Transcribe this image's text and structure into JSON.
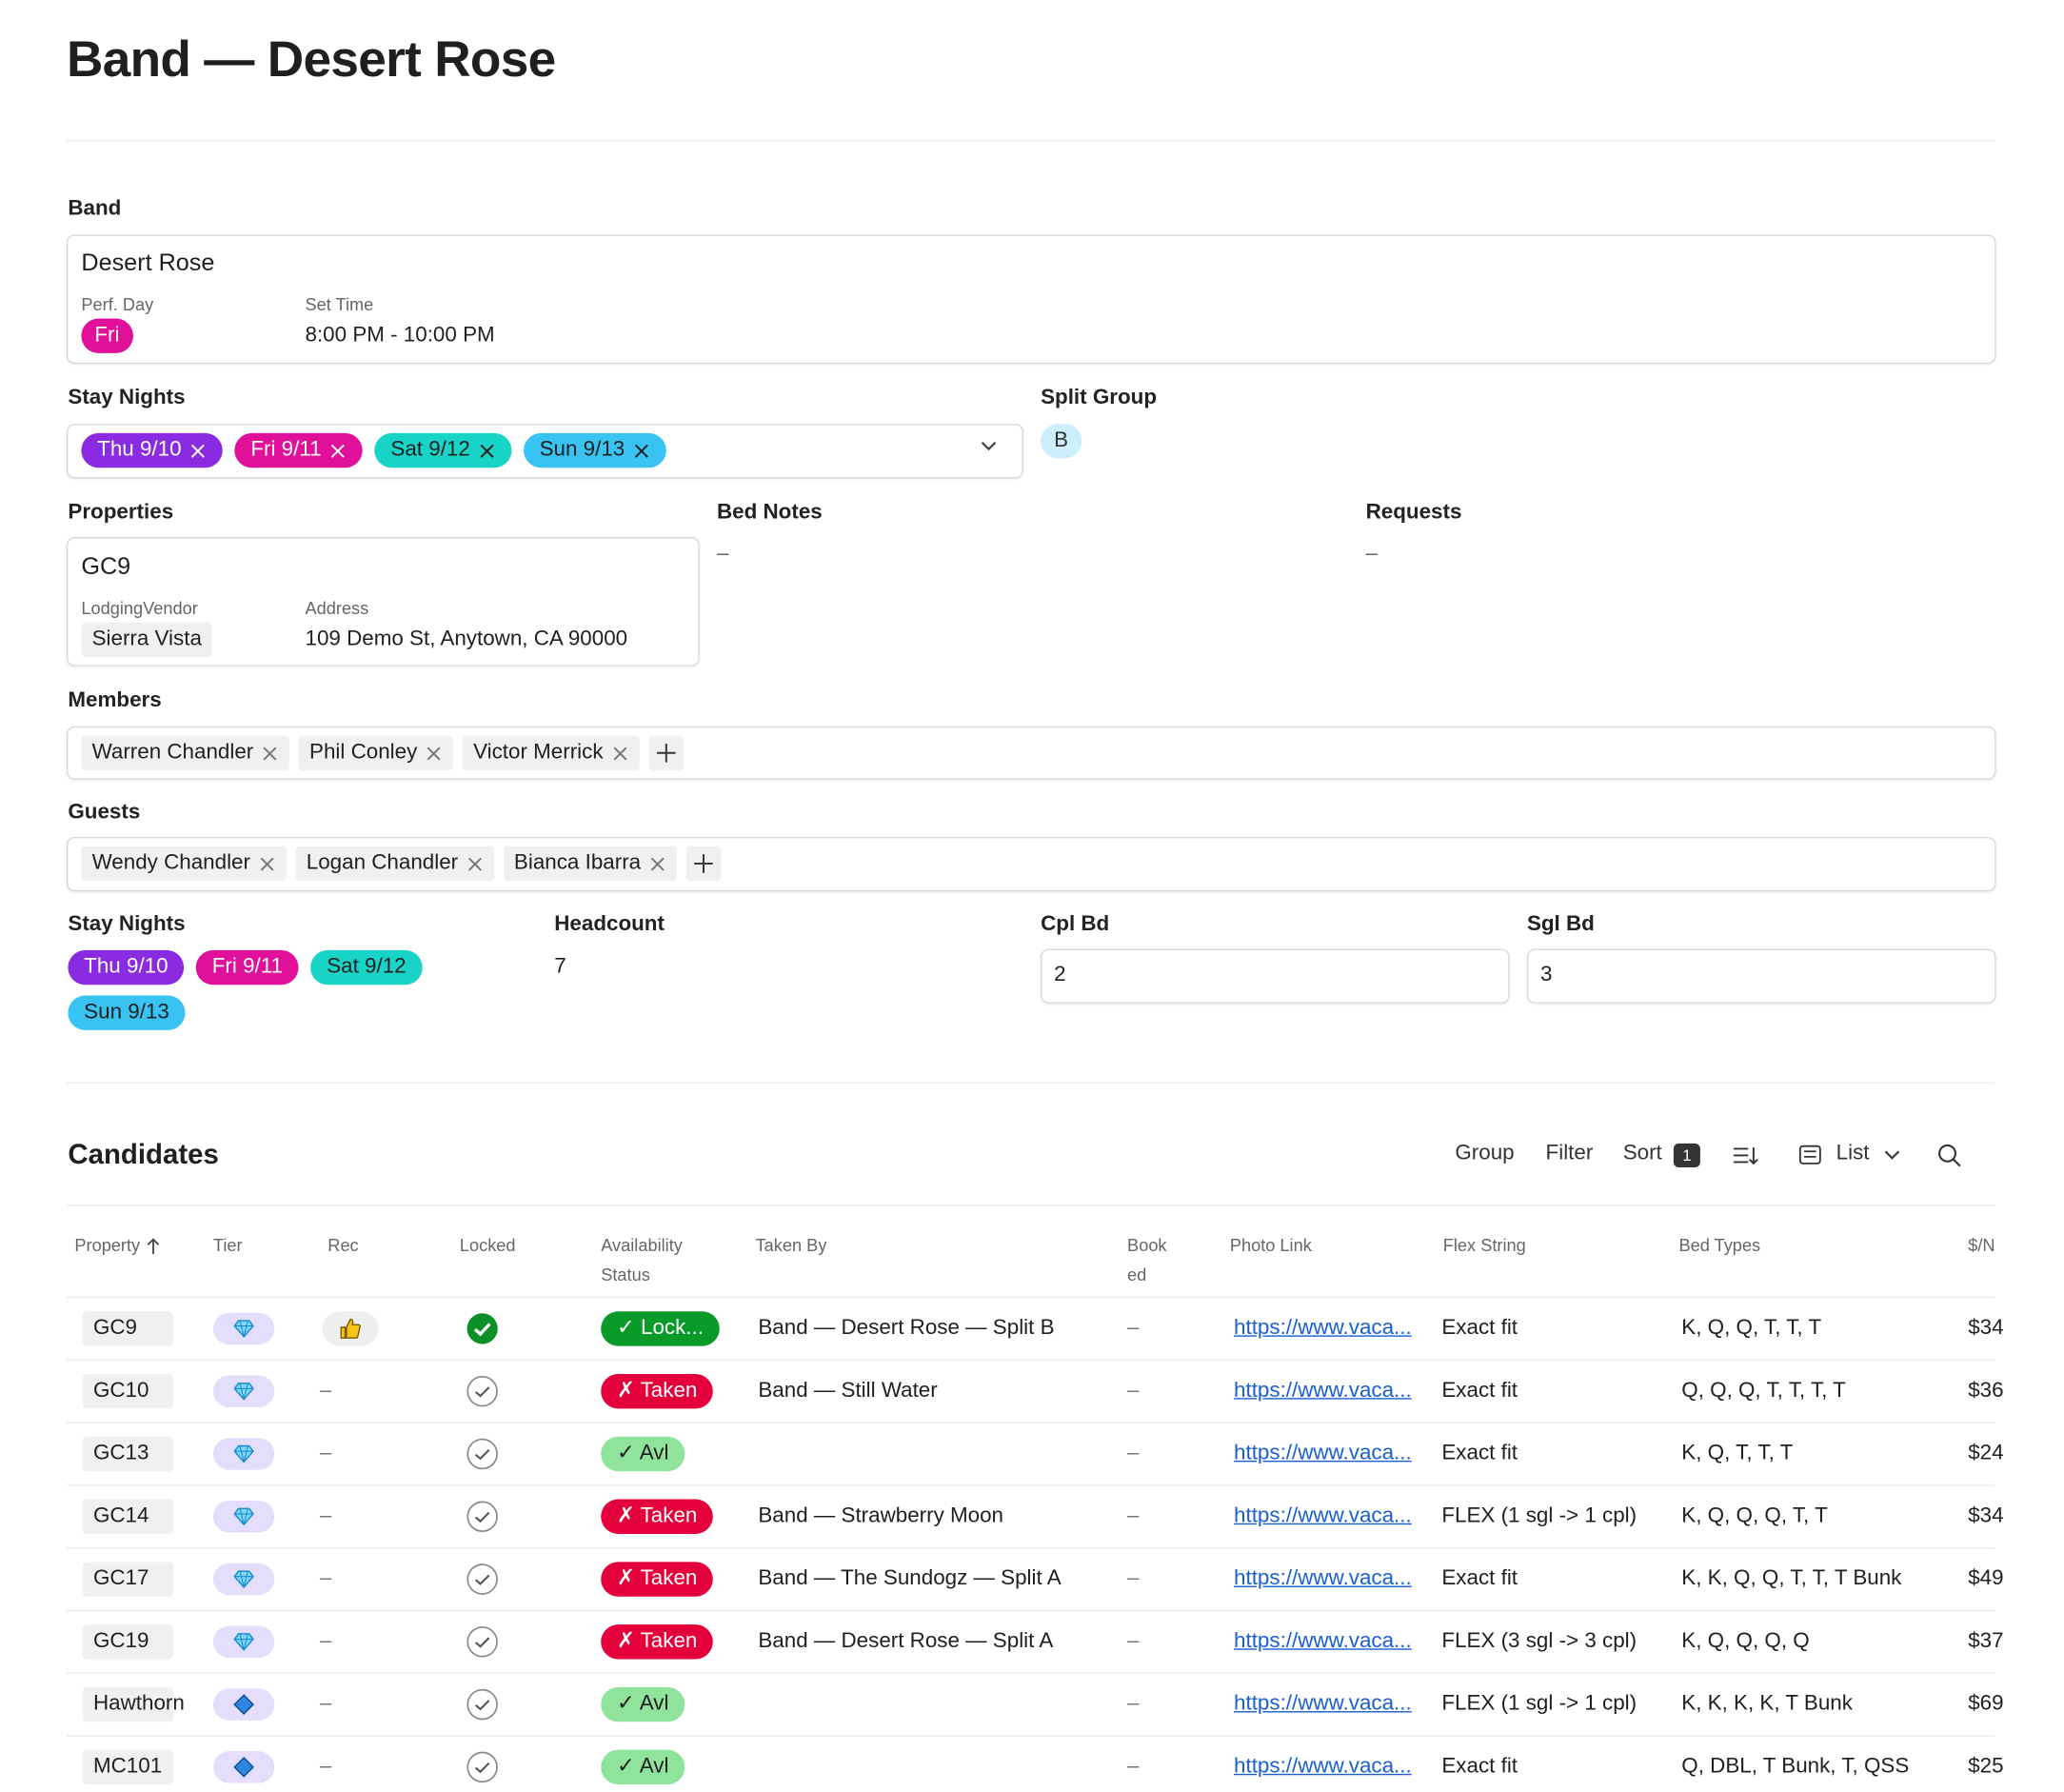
{
  "header": {
    "title": "Band — Desert Rose"
  },
  "band": {
    "label": "Band",
    "name": "Desert Rose",
    "perf_day_label": "Perf. Day",
    "perf_day": "Fri",
    "set_time_label": "Set Time",
    "set_time": "8:00 PM - 10:00 PM"
  },
  "stay_nights": {
    "label": "Stay Nights",
    "chips": [
      "Thu 9/10",
      "Fri 9/11",
      "Sat 9/12",
      "Sun 9/13"
    ]
  },
  "split_group": {
    "label": "Split Group",
    "value": "B"
  },
  "properties": {
    "label": "Properties",
    "name": "GC9",
    "vendor_label": "LodgingVendor",
    "vendor": "Sierra Vista",
    "address_label": "Address",
    "address": "109 Demo St, Anytown, CA 90000"
  },
  "bed_notes": {
    "label": "Bed Notes",
    "value": "–"
  },
  "requests": {
    "label": "Requests",
    "value": "–"
  },
  "members": {
    "label": "Members",
    "chips": [
      "Warren Chandler",
      "Phil Conley",
      "Victor Merrick"
    ]
  },
  "guests": {
    "label": "Guests",
    "chips": [
      "Wendy Chandler",
      "Logan Chandler",
      "Bianca Ibarra"
    ]
  },
  "stay_nights_summary": {
    "label": "Stay Nights",
    "chips": [
      "Thu 9/10",
      "Fri 9/11",
      "Sat 9/12",
      "Sun 9/13"
    ]
  },
  "headcount": {
    "label": "Headcount",
    "value": 7
  },
  "cpl_bd": {
    "label": "Cpl Bd",
    "value": 2
  },
  "sgl_bd": {
    "label": "Sgl Bd",
    "value": 3
  },
  "candidates": {
    "title": "Candidates",
    "toolbar": {
      "group": "Group",
      "filter": "Filter",
      "sort": "Sort",
      "sort_count": 1,
      "view": "List"
    },
    "columns": [
      "Property",
      "Tier",
      "Rec",
      "Locked",
      "Availability Status",
      "Taken By",
      "Booked",
      "Photo Link",
      "Flex String",
      "Bed Types",
      "$/N"
    ],
    "rows": [
      {
        "property": "GC9",
        "availability": "✓ Lock...",
        "taken_by": "Band — Desert Rose — Split B",
        "booked": "–",
        "photo_link": "https://www.vaca...",
        "flex": "Exact fit",
        "bed_types": "K, Q, Q, T, T, T",
        "price": "$34"
      },
      {
        "property": "GC10",
        "rec": "–",
        "availability": "✗ Taken",
        "taken_by": "Band — Still Water",
        "booked": "–",
        "photo_link": "https://www.vaca...",
        "flex": "Exact fit",
        "bed_types": "Q, Q, Q, T, T, T, T",
        "price": "$36"
      },
      {
        "property": "GC13",
        "rec": "–",
        "availability": "✓ Avl",
        "booked": "–",
        "photo_link": "https://www.vaca...",
        "flex": "Exact fit",
        "bed_types": "K, Q, T, T, T",
        "price": "$24"
      },
      {
        "property": "GC14",
        "rec": "–",
        "availability": "✗ Taken",
        "taken_by": "Band — Strawberry Moon",
        "booked": "–",
        "photo_link": "https://www.vaca...",
        "flex": "FLEX (1 sgl -> 1 cpl)",
        "bed_types": "K, Q, Q, Q, T, T",
        "price": "$34"
      },
      {
        "property": "GC17",
        "rec": "–",
        "availability": "✗ Taken",
        "taken_by": "Band — The Sundogz — Split A",
        "booked": "–",
        "photo_link": "https://www.vaca...",
        "flex": "Exact fit",
        "bed_types": "K, K, Q, Q, T, T, T Bunk",
        "price": "$49"
      },
      {
        "property": "GC19",
        "rec": "–",
        "availability": "✗ Taken",
        "taken_by": "Band — Desert Rose — Split A",
        "booked": "–",
        "photo_link": "https://www.vaca...",
        "flex": "FLEX (3 sgl -> 3 cpl)",
        "bed_types": "K, Q, Q, Q, Q",
        "price": "$37"
      },
      {
        "property": "Hawthorn",
        "rec": "–",
        "availability": "✓ Avl",
        "booked": "–",
        "photo_link": "https://www.vaca...",
        "flex": "FLEX (1 sgl -> 1 cpl)",
        "bed_types": "K, K, K, K, T Bunk",
        "price": "$69"
      },
      {
        "property": "MC101",
        "rec": "–",
        "availability": "✓ Avl",
        "booked": "–",
        "photo_link": "https://www.vaca...",
        "flex": "Exact fit",
        "bed_types": "Q, DBL, T Bunk, T, QSS",
        "price": "$25"
      }
    ]
  }
}
